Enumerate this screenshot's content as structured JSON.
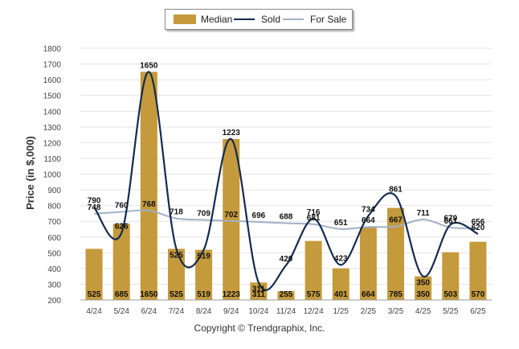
{
  "legend": {
    "median_label": "Median",
    "sold_label": "Sold",
    "forsale_label": "For Sale"
  },
  "copyright": "Copyright © Trendgraphix, Inc.",
  "colors": {
    "median": "#c49a3c",
    "sold": "#152b4f",
    "forsale": "#a3b0c6"
  },
  "chart_data": {
    "type": "bar",
    "title": "",
    "xlabel": "",
    "ylabel": "Price (in $,000)",
    "ylim": [
      200,
      1800
    ],
    "yticks": [
      200,
      300,
      400,
      500,
      600,
      700,
      800,
      900,
      1000,
      1100,
      1200,
      1300,
      1400,
      1500,
      1600,
      1700,
      1800
    ],
    "grid": true,
    "legend_position": "top-center",
    "categories": [
      "4/24",
      "5/24",
      "6/24",
      "7/24",
      "8/24",
      "9/24",
      "10/24",
      "11/24",
      "12/24",
      "1/25",
      "2/25",
      "3/25",
      "4/25",
      "5/25",
      "6/25"
    ],
    "series": [
      {
        "name": "Median",
        "type": "bar",
        "values": [
          525,
          685,
          1650,
          525,
          519,
          1223,
          311,
          255,
          575,
          401,
          664,
          785,
          350,
          503,
          570
        ]
      },
      {
        "name": "Sold",
        "type": "line",
        "values": [
          790,
          626,
          1650,
          525,
          519,
          1223,
          311,
          420,
          716,
          423,
          734,
          861,
          350,
          679,
          620
        ]
      },
      {
        "name": "For Sale",
        "type": "line",
        "values": [
          748,
          760,
          768,
          718,
          709,
          702,
          696,
          688,
          681,
          651,
          664,
          667,
          711,
          661,
          656
        ]
      }
    ]
  }
}
